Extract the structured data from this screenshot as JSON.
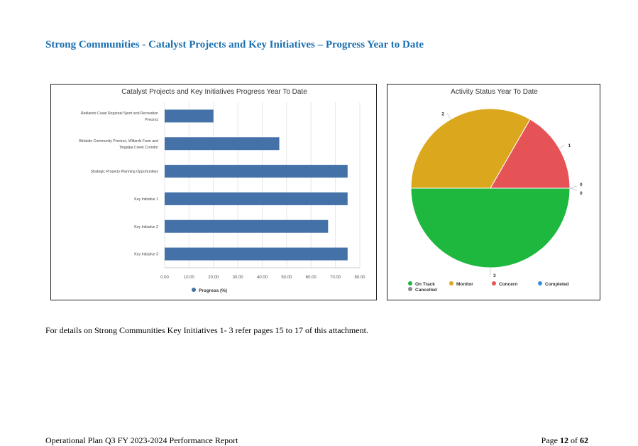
{
  "document": {
    "title": "Strong Communities - Catalyst Projects and Key Initiatives – Progress Year to Date",
    "note": "For details on Strong Communities Key Initiatives 1- 3 refer pages 15 to 17 of this attachment.",
    "footer": {
      "report_name": "Operational Plan Q3 FY 2023-2024 Performance Report",
      "page_prefix": "Page",
      "page_number": "12",
      "page_of": "of",
      "page_total": "62"
    }
  },
  "chart_data": [
    {
      "type": "bar",
      "orientation": "horizontal",
      "title": "Catalyst Projects and Key Initiatives Progress Year To Date",
      "categories": [
        [
          "Redlands Coast Regional Sport and Recreation",
          "Precinct"
        ],
        [
          "Birkdale Community Precinct, Willards Farm and",
          "Tingalpa Creek Corridor"
        ],
        [
          "Strategic Property Planning Opportunities"
        ],
        [
          "Key Initiative 1"
        ],
        [
          "Key Initiative 2"
        ],
        [
          "Key Initiative 3"
        ]
      ],
      "series": [
        {
          "name": "Progress (%)",
          "color": "#4472a8",
          "values": [
            20,
            47,
            75,
            75,
            67,
            75
          ]
        }
      ],
      "xlim": [
        0,
        80
      ],
      "xticks": [
        0,
        10,
        20,
        30,
        40,
        50,
        60,
        70,
        80
      ],
      "xtick_labels": [
        "0.00",
        "10.00",
        "20.00",
        "30.00",
        "40.00",
        "50.00",
        "60.00",
        "70.00",
        "80.00"
      ],
      "grid": true,
      "legend_position": "bottom"
    },
    {
      "type": "pie",
      "title": "Activity Status Year To Date",
      "slices": [
        {
          "name": "On Track",
          "value": 3,
          "color": "#1db83d"
        },
        {
          "name": "Monitor",
          "value": 2,
          "color": "#dba71d"
        },
        {
          "name": "Concern",
          "value": 1,
          "color": "#e55356"
        },
        {
          "name": "Completed",
          "value": 0,
          "color": "#3a8fd8"
        },
        {
          "name": "Cancelled",
          "value": 0,
          "color": "#8c8c8c"
        }
      ],
      "legend_position": "bottom"
    }
  ]
}
